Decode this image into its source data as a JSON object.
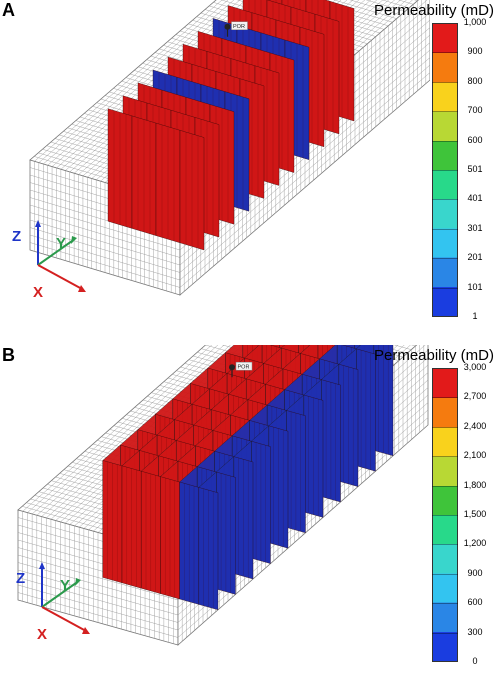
{
  "panels": [
    {
      "label": "A",
      "legend_title": "Permeability (mD)",
      "ticks": [
        "1,000",
        "900",
        "800",
        "700",
        "600",
        "501",
        "401",
        "301",
        "201",
        "101",
        "1"
      ],
      "well_label": "POR",
      "axes": {
        "x": "X",
        "y": "Y",
        "z": "Z"
      }
    },
    {
      "label": "B",
      "legend_title": "Permeability (mD)",
      "ticks": [
        "3,000",
        "2,700",
        "2,400",
        "2,100",
        "1,800",
        "1,500",
        "1,200",
        "900",
        "600",
        "300",
        "0"
      ],
      "well_label": "POR",
      "axes": {
        "x": "X",
        "y": "Y",
        "z": "Z"
      }
    }
  ],
  "colormap": [
    "#e21a1a",
    "#f57b0f",
    "#f9d21c",
    "#b8d834",
    "#3fc43a",
    "#28d98a",
    "#39d6cc",
    "#33c4f0",
    "#2a86e6",
    "#1a3de0"
  ],
  "fracture_colors": {
    "high": "#d01616",
    "low": "#1f2fb0"
  }
}
